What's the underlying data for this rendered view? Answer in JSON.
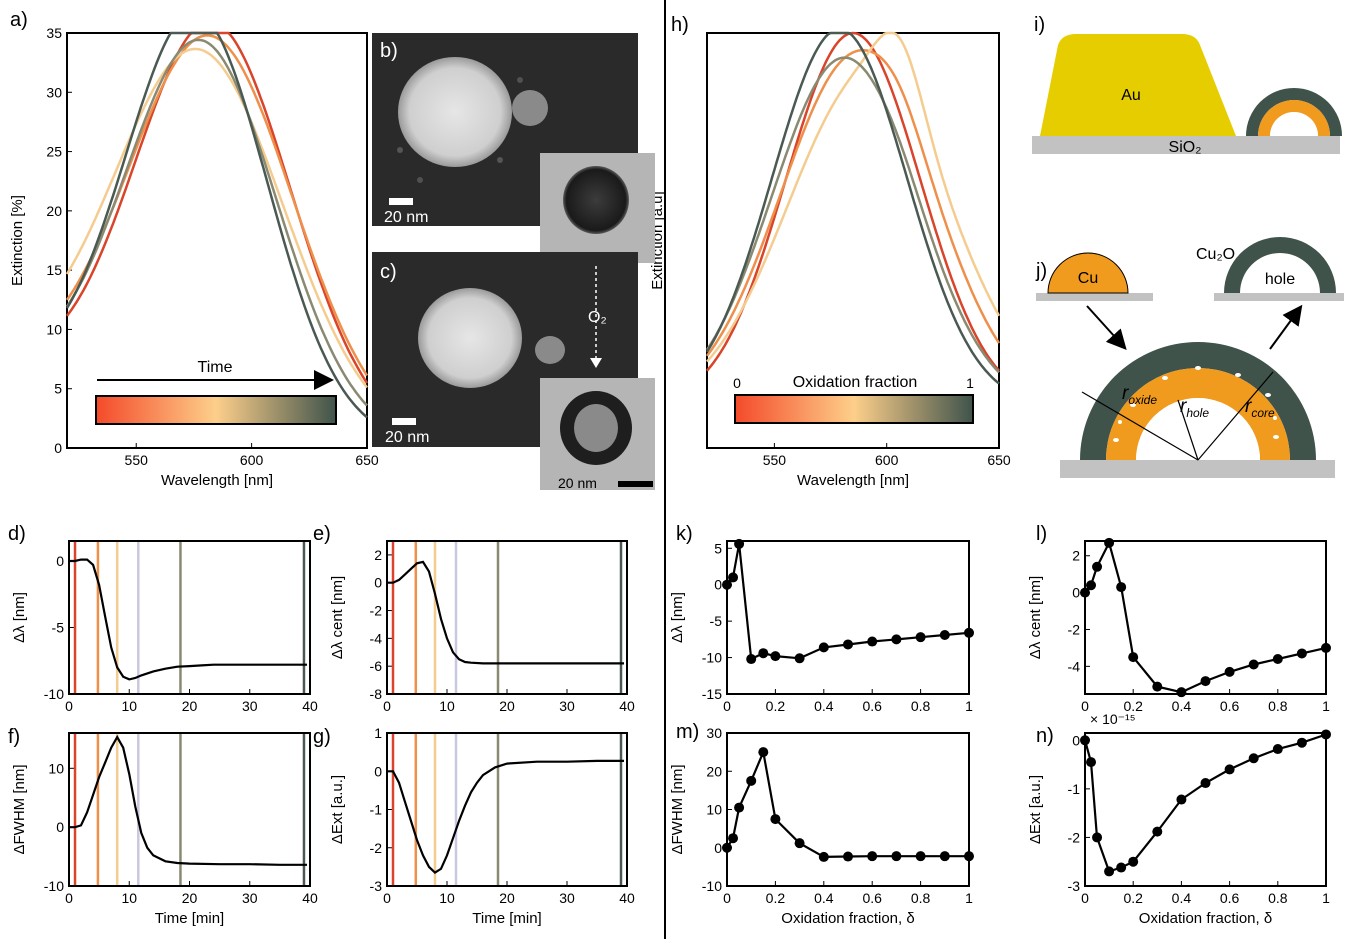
{
  "colors": {
    "time": [
      "#d9442a",
      "#ee8f4a",
      "#f5cc8f",
      "#8a8a72",
      "#4a5a52"
    ],
    "vlines": [
      "#d9442a",
      "#ee8f4a",
      "#f5cc8f",
      "#c8c8e0",
      "#8a8a72",
      "#4a5a52"
    ],
    "au": "#e6cd00",
    "cu": "#f09a1e",
    "oxide": "#3f534b",
    "substrate": "#c2c2c2",
    "gradient": [
      "#f44a2a",
      "#fdcf8a",
      "#3f534b"
    ]
  },
  "labels": {
    "a": "a)",
    "b": "b)",
    "c": "c)",
    "d": "d)",
    "e": "e)",
    "f": "f)",
    "g": "g)",
    "h": "h)",
    "i": "i)",
    "j": "j)",
    "k": "k)",
    "l": "l)",
    "m": "m)",
    "n": "n)"
  },
  "micrographs": {
    "scalebar_20nm": "20 nm",
    "o2_label": "O₂"
  },
  "schematic_i": {
    "au": "Au",
    "sio2": "SiO₂"
  },
  "schematic_j": {
    "cu": "Cu",
    "cu2o": "Cu₂O",
    "hole": "hole",
    "r": "r",
    "r_oxide": "oxide",
    "r_hole": "hole",
    "r_core": "core"
  },
  "chart_data": [
    {
      "id": "a",
      "type": "line",
      "xlabel": "Wavelength [nm]",
      "ylabel": "Extinction [%]",
      "xlim": [
        520,
        650
      ],
      "ylim": [
        0,
        35
      ],
      "xticks": [
        550,
        600,
        650
      ],
      "yticks": [
        0,
        5,
        10,
        15,
        20,
        25,
        30,
        35
      ],
      "colorbar_label": "Time",
      "series": [
        {
          "peak": 583,
          "amp": 34.2,
          "sig": 34,
          "sub": 0
        },
        {
          "peak": 582,
          "amp": 33.0,
          "sig": 36,
          "sub": 0
        },
        {
          "peak": 577,
          "amp": 31.7,
          "sig": 37,
          "sub": 0
        },
        {
          "peak": 578,
          "amp": 32.5,
          "sig": 33,
          "sub": 0
        },
        {
          "peak": 576,
          "amp": 34.8,
          "sig": 31,
          "sub": 0
        }
      ]
    },
    {
      "id": "h",
      "type": "line",
      "xlabel": "Wavelength [nm]",
      "ylabel": "Extinction [a.u]",
      "xlim": [
        520,
        650
      ],
      "ylim": [
        0,
        1
      ],
      "xticks": [
        550,
        600,
        650
      ],
      "colorbar_label": "Oxidation fraction",
      "colorbar_ticks": [
        "0",
        "1"
      ],
      "series": [
        {
          "peak": 585,
          "amp": 0.9,
          "sig": 30,
          "sub": 0
        },
        {
          "peak": 587,
          "amp": 0.85,
          "sig": 34,
          "sub": 0.05
        },
        {
          "peak": 592,
          "amp": 0.8,
          "sig": 36,
          "sub": 0.18
        },
        {
          "peak": 581,
          "amp": 0.84,
          "sig": 32,
          "sub": 0.02
        },
        {
          "peak": 579,
          "amp": 0.91,
          "sig": 30,
          "sub": 0
        }
      ]
    },
    {
      "id": "d",
      "type": "line",
      "ylabel": "Δλ [nm]",
      "xlim": [
        0,
        40
      ],
      "ylim": [
        -10,
        1.5
      ],
      "xticks": [
        0,
        10,
        20,
        30,
        40
      ],
      "yticks": [
        0,
        -5,
        -10
      ],
      "vlines": [
        1,
        4.8,
        8,
        11.5,
        18.5,
        39
      ],
      "x": [
        0,
        1,
        2,
        3,
        4,
        5,
        6,
        7,
        8,
        9,
        10,
        11,
        12,
        14,
        16,
        18,
        20,
        22,
        24,
        26,
        30,
        35,
        39.5
      ],
      "y": [
        0,
        0,
        0.1,
        0.1,
        -0.3,
        -1.8,
        -4.2,
        -6.5,
        -8.0,
        -8.7,
        -8.9,
        -8.8,
        -8.6,
        -8.3,
        -8.1,
        -7.95,
        -7.9,
        -7.85,
        -7.8,
        -7.8,
        -7.8,
        -7.8,
        -7.8
      ]
    },
    {
      "id": "e",
      "type": "line",
      "ylabel": "Δλ cent [nm]",
      "xlim": [
        0,
        40
      ],
      "ylim": [
        -8,
        3
      ],
      "xticks": [
        0,
        10,
        20,
        30,
        40
      ],
      "yticks": [
        2,
        0,
        -2,
        -4,
        -6,
        -8
      ],
      "vlines": [
        1,
        4.8,
        8,
        11.5,
        18.5,
        39
      ],
      "x": [
        0,
        1,
        2,
        3,
        4,
        5,
        6,
        7,
        8,
        9,
        10,
        11,
        12,
        13,
        14,
        16,
        18,
        20,
        25,
        30,
        35,
        39.5
      ],
      "y": [
        0,
        0,
        0.2,
        0.6,
        1.0,
        1.4,
        1.5,
        0.8,
        -0.8,
        -2.6,
        -4.0,
        -5.0,
        -5.5,
        -5.7,
        -5.75,
        -5.8,
        -5.8,
        -5.8,
        -5.8,
        -5.8,
        -5.8,
        -5.8
      ]
    },
    {
      "id": "f",
      "type": "line",
      "ylabel": "ΔFWHM [nm]",
      "xlim": [
        0,
        40
      ],
      "ylim": [
        -10,
        16
      ],
      "xticks": [
        0,
        10,
        20,
        30,
        40
      ],
      "yticks": [
        10,
        0,
        -10
      ],
      "xlabel": "Time [min]",
      "vlines": [
        1,
        4.8,
        8,
        11.5,
        18.5,
        39
      ],
      "x": [
        0,
        1,
        2,
        3,
        4,
        5,
        6,
        7,
        8,
        9,
        10,
        11,
        12,
        13,
        14,
        16,
        18,
        20,
        25,
        30,
        35,
        39.5
      ],
      "y": [
        0,
        0,
        0.3,
        2.5,
        5.5,
        8.5,
        11.0,
        13.5,
        15.3,
        13.5,
        9.0,
        3.5,
        -1.0,
        -3.5,
        -4.8,
        -5.8,
        -6.1,
        -6.2,
        -6.3,
        -6.3,
        -6.4,
        -6.4
      ]
    },
    {
      "id": "g",
      "type": "line",
      "ylabel": "ΔExt [a.u.]",
      "xlim": [
        0,
        40
      ],
      "ylim": [
        -3,
        1
      ],
      "xticks": [
        0,
        10,
        20,
        30,
        40
      ],
      "yticks": [
        1,
        0,
        -1,
        -2,
        -3
      ],
      "xlabel": "Time [min]",
      "vlines": [
        1,
        4.8,
        8,
        11.5,
        18.5,
        39
      ],
      "x": [
        0,
        1,
        2,
        3,
        4,
        5,
        6,
        7,
        8,
        9,
        10,
        11,
        12,
        13,
        14,
        15,
        16,
        18,
        20,
        25,
        30,
        35,
        39.5
      ],
      "y": [
        0,
        0,
        -0.3,
        -0.8,
        -1.3,
        -1.8,
        -2.2,
        -2.5,
        -2.65,
        -2.55,
        -2.2,
        -1.75,
        -1.3,
        -0.9,
        -0.55,
        -0.3,
        -0.1,
        0.1,
        0.2,
        0.25,
        0.25,
        0.27,
        0.27
      ]
    },
    {
      "id": "k",
      "type": "scatter",
      "ylabel": "Δλ [nm]",
      "xlim": [
        0,
        1
      ],
      "ylim": [
        -15,
        6
      ],
      "xticks": [
        0,
        0.2,
        0.4,
        0.6,
        0.8,
        1
      ],
      "yticks": [
        5,
        0,
        -5,
        -10,
        -15
      ],
      "x": [
        0,
        0.025,
        0.05,
        0.1,
        0.15,
        0.2,
        0.3,
        0.4,
        0.5,
        0.6,
        0.7,
        0.8,
        0.9,
        1.0
      ],
      "y": [
        0,
        1.0,
        5.6,
        -10.2,
        -9.4,
        -9.8,
        -10.1,
        -8.6,
        -8.2,
        -7.8,
        -7.5,
        -7.2,
        -6.9,
        -6.6
      ]
    },
    {
      "id": "l",
      "type": "scatter",
      "ylabel": "Δλ cent [nm]",
      "xlim": [
        0,
        1
      ],
      "ylim": [
        -5.5,
        2.8
      ],
      "xticks": [
        0,
        0.2,
        0.4,
        0.6,
        0.8,
        1
      ],
      "yticks": [
        2,
        0,
        -2,
        -4
      ],
      "x": [
        0,
        0.025,
        0.05,
        0.1,
        0.15,
        0.2,
        0.3,
        0.4,
        0.5,
        0.6,
        0.7,
        0.8,
        0.9,
        1.0
      ],
      "y": [
        0,
        0.4,
        1.4,
        2.7,
        0.3,
        -3.5,
        -5.1,
        -5.4,
        -4.8,
        -4.3,
        -3.9,
        -3.6,
        -3.3,
        -3.0
      ]
    },
    {
      "id": "m",
      "type": "scatter",
      "ylabel": "ΔFWHM [nm]",
      "xlim": [
        0,
        1
      ],
      "ylim": [
        -10,
        30
      ],
      "xticks": [
        0,
        0.2,
        0.4,
        0.6,
        0.8,
        1
      ],
      "yticks": [
        30,
        20,
        10,
        0,
        -10
      ],
      "xlabel": "Oxidation fraction, δ",
      "x": [
        0,
        0.025,
        0.05,
        0.1,
        0.15,
        0.2,
        0.3,
        0.4,
        0.5,
        0.6,
        0.7,
        0.8,
        0.9,
        1.0
      ],
      "y": [
        0,
        2.5,
        10.5,
        17.5,
        25.0,
        7.5,
        1.2,
        -2.4,
        -2.3,
        -2.2,
        -2.2,
        -2.2,
        -2.2,
        -2.2
      ]
    },
    {
      "id": "n",
      "type": "scatter",
      "ylabel": "ΔExt [a.u.]",
      "xlim": [
        0,
        1
      ],
      "ylim": [
        -3,
        0.15
      ],
      "xticks": [
        0,
        0.2,
        0.4,
        0.6,
        0.8,
        1
      ],
      "yticks": [
        0,
        -1,
        -2,
        -3
      ],
      "xlabel": "Oxidation fraction, δ",
      "multiplier": "× 10⁻¹⁵",
      "x": [
        0,
        0.025,
        0.05,
        0.1,
        0.15,
        0.2,
        0.3,
        0.4,
        0.5,
        0.6,
        0.7,
        0.8,
        0.9,
        1.0
      ],
      "y": [
        0,
        -0.45,
        -2.0,
        -2.7,
        -2.62,
        -2.5,
        -1.88,
        -1.22,
        -0.88,
        -0.6,
        -0.37,
        -0.18,
        -0.05,
        0.12
      ]
    }
  ]
}
